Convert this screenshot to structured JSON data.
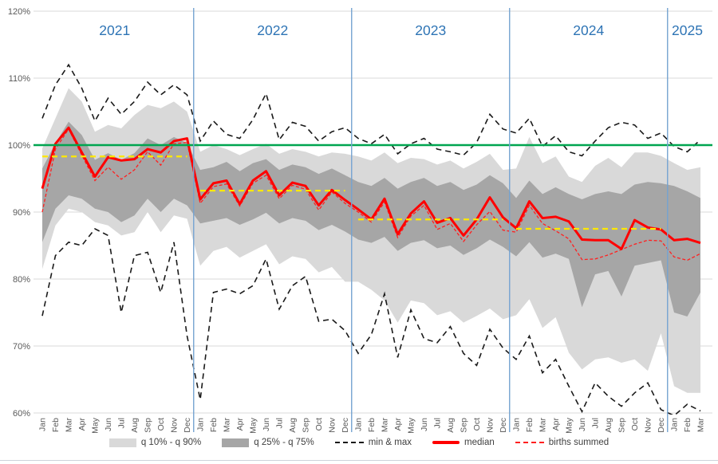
{
  "colors": {
    "band_outer": "#D9D9D9",
    "band_inner": "#A6A6A6",
    "minmax_line": "#1a1a1a",
    "median_line": "#FF0000",
    "births_line": "#FF2020",
    "reference_line": "#00A550",
    "year_avg_line": "#FFE800",
    "year_separator": "#75A3D1",
    "year_label": "#2E74B5",
    "axis_text": "#595959",
    "gridline": "#D9D9D9"
  },
  "legend": {
    "q10_q90": "q 10% - q 90%",
    "q25_q75": "q 25% - q 75%",
    "minmax": "min & max",
    "median": "median",
    "births": "births summed"
  },
  "chart_data": {
    "type": "area",
    "subtype": "fan-chart-with-lines",
    "title": "",
    "xlabel": "",
    "ylabel": "",
    "ylim": [
      60,
      120
    ],
    "y_ticks": [
      {
        "label": "120%",
        "value": 120
      },
      {
        "label": "110%",
        "value": 110
      },
      {
        "label": "100%",
        "value": 100
      },
      {
        "label": "90%",
        "value": 90
      },
      {
        "label": "80%",
        "value": 80
      },
      {
        "label": "70%",
        "value": 70
      },
      {
        "label": "60%",
        "value": 60
      }
    ],
    "reference_value": 100,
    "grid": true,
    "legend_position": "bottom",
    "x_labels": [
      "Jan",
      "Feb",
      "Mar",
      "Apr",
      "May",
      "Jun",
      "Jul",
      "Aug",
      "Sep",
      "Oct",
      "Nov",
      "Dec",
      "Jan",
      "Feb",
      "Mar",
      "Apr",
      "May",
      "Jun",
      "Jul",
      "Aug",
      "Sep",
      "Oct",
      "Nov",
      "Dec",
      "Jan",
      "Feb",
      "Mar",
      "Apr",
      "May",
      "Jun",
      "Jul",
      "Aug",
      "Sep",
      "Oct",
      "Nov",
      "Dec",
      "Jan",
      "Feb",
      "Mar",
      "Apr",
      "May",
      "Jun",
      "Jul",
      "Aug",
      "Sep",
      "Oct",
      "Nov",
      "Dec",
      "Jan",
      "Feb",
      "Mar"
    ],
    "years": [
      {
        "label": "2021",
        "start": 0,
        "count": 12,
        "avg": 98.3
      },
      {
        "label": "2022",
        "start": 12,
        "count": 12,
        "avg": 93.2
      },
      {
        "label": "2023",
        "start": 24,
        "count": 12,
        "avg": 88.9
      },
      {
        "label": "2024",
        "start": 36,
        "count": 12,
        "avg": 87.5
      },
      {
        "label": "2025",
        "start": 48,
        "count": 3,
        "avg": null
      }
    ],
    "series": [
      {
        "name": "q 10% - q 90%",
        "type": "band",
        "upper": [
          99.5,
          104,
          108.5,
          106.5,
          102,
          103,
          102.5,
          104.5,
          106,
          105.5,
          106.5,
          105,
          99,
          100,
          99.4,
          98.5,
          99.4,
          100.2,
          98.7,
          99.4,
          99,
          98.3,
          98.9,
          98.7,
          98.3,
          97.7,
          98.9,
          97.3,
          98.1,
          97.9,
          97.1,
          97.7,
          96.5,
          97.5,
          98.7,
          96.3,
          96.5,
          101.2,
          97.3,
          98.3,
          95.3,
          94.5,
          96.9,
          98.1,
          96.7,
          98.9,
          98.9,
          98.4,
          97.3,
          96.3,
          96.7
        ],
        "lower": [
          81.5,
          88,
          90.5,
          90,
          88.5,
          88,
          86.5,
          87,
          90,
          87,
          89.5,
          89,
          82,
          84.2,
          84.8,
          83.2,
          84.2,
          85.2,
          82.2,
          83.4,
          83,
          81,
          81.8,
          79.6,
          79.6,
          78.4,
          76.8,
          73.5,
          76.8,
          76.4,
          74.6,
          75.2,
          73.5,
          74.5,
          75.6,
          74,
          74.6,
          77,
          72.7,
          74.3,
          69,
          66.5,
          68,
          68.3,
          67.5,
          68,
          66.3,
          71.9,
          64,
          63,
          63
        ]
      },
      {
        "name": "q 25% - q 75%",
        "type": "band",
        "upper": [
          96.5,
          100.3,
          103.5,
          101.5,
          97.8,
          98.8,
          97.8,
          98.8,
          101,
          100,
          101.2,
          100.3,
          96.3,
          96.7,
          97.5,
          96.1,
          97.3,
          97.9,
          96.3,
          97.1,
          96.7,
          95.7,
          96.5,
          95.5,
          94.5,
          93.9,
          95.1,
          93.5,
          94.5,
          95.1,
          93.9,
          94.5,
          93.3,
          94.1,
          95.5,
          94.3,
          92.1,
          94.7,
          92.7,
          93.7,
          92.7,
          91.9,
          92.7,
          93.1,
          92.7,
          94.1,
          94.5,
          94.3,
          93.9,
          93.1,
          92.1
        ],
        "lower": [
          85.5,
          90.5,
          92.5,
          92,
          90.5,
          90,
          88.5,
          89.5,
          92,
          90,
          92,
          91,
          88.3,
          88.7,
          89.1,
          88.1,
          88.9,
          89.9,
          88.3,
          89.1,
          88.7,
          87.3,
          88.1,
          87.1,
          85.9,
          85.4,
          86.3,
          84.2,
          85.4,
          85.8,
          84.6,
          85,
          83.6,
          84.6,
          85.9,
          84.8,
          83.4,
          85.5,
          83.2,
          83.8,
          83,
          75.8,
          80.7,
          81.2,
          77.4,
          82,
          82.4,
          82.8,
          75,
          74.4,
          78
        ]
      },
      {
        "name": "min & max",
        "type": "line-pair",
        "dash": true,
        "max": [
          104,
          109,
          112,
          108.5,
          103.6,
          107,
          104.6,
          106.5,
          109.4,
          107.5,
          109,
          107.5,
          100.6,
          103.6,
          101.6,
          101,
          103.8,
          107.7,
          100.8,
          103.4,
          102.8,
          100.6,
          102,
          102.6,
          101,
          100.2,
          101.6,
          98.7,
          100.2,
          101,
          99.4,
          99,
          98.5,
          100.4,
          104.6,
          102.4,
          101.8,
          104,
          99.8,
          101.4,
          99,
          98.4,
          100.6,
          102.6,
          103.4,
          103,
          101,
          101.8,
          99.8,
          99,
          100.8
        ],
        "min": [
          74.5,
          83.5,
          85.5,
          85,
          87.5,
          86.5,
          75,
          83.5,
          84,
          78,
          85.5,
          71.5,
          62,
          78,
          78.5,
          77.8,
          79,
          83,
          75.5,
          79,
          80.4,
          73.7,
          74,
          72.3,
          68.9,
          71.7,
          77.8,
          68.3,
          75.4,
          71.1,
          70.5,
          72.9,
          68.9,
          67.1,
          72.5,
          69.7,
          68,
          71.5,
          66,
          68,
          64,
          60.2,
          64.5,
          62.5,
          61,
          63,
          64.5,
          60.5,
          59.6,
          61.3,
          60.3
        ]
      },
      {
        "name": "median",
        "type": "line",
        "dash": false,
        "values": [
          93.5,
          100.2,
          102.6,
          98.9,
          95.3,
          98.2,
          97.7,
          97.9,
          99.4,
          98.9,
          100.6,
          101,
          91.9,
          94.3,
          94.7,
          91.2,
          94.7,
          96.1,
          92.5,
          94.4,
          93.9,
          91,
          93.3,
          91.8,
          90.4,
          88.9,
          92,
          86.7,
          89.8,
          91.6,
          88.4,
          89.1,
          86.5,
          88.9,
          92.2,
          89.2,
          87.6,
          91.6,
          89.1,
          89.3,
          88.6,
          85.9,
          85.8,
          85.8,
          84.5,
          88.8,
          87.7,
          87.4,
          85.8,
          86,
          85.4
        ]
      },
      {
        "name": "births summed",
        "type": "line",
        "dash": true,
        "values": [
          90,
          99.4,
          102.4,
          98.5,
          94.7,
          96.7,
          94.9,
          96.3,
          99,
          97,
          100.2,
          100.4,
          91.3,
          93.8,
          94.2,
          90.9,
          94.3,
          95.5,
          92,
          94,
          93.4,
          90.3,
          93,
          91.3,
          90,
          88.5,
          91.5,
          86.2,
          89.4,
          91,
          87.4,
          88.3,
          85.6,
          88.1,
          90.1,
          87.3,
          87,
          91,
          88.3,
          87.2,
          86,
          82.9,
          83,
          83.6,
          84.4,
          85.2,
          85.8,
          85.7,
          83.3,
          82.8,
          83.8
        ]
      }
    ]
  }
}
